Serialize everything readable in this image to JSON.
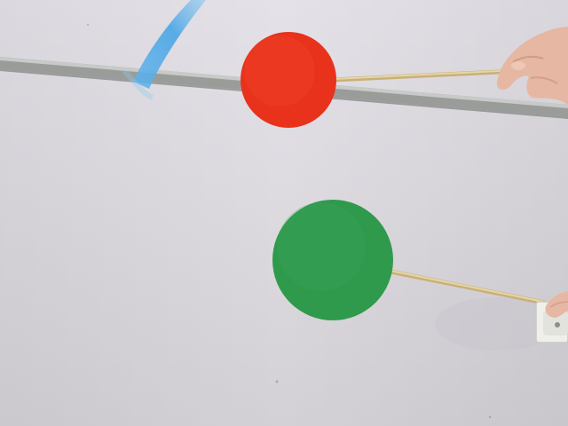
{
  "scene": {
    "subjects": [
      "red-disc",
      "green-disc"
    ],
    "colors": {
      "wall": "#dcdadf",
      "wall_shadow": "#c9c6cf",
      "rail": "#8f9290",
      "rail_highlight": "#c4c6c4",
      "red_disc": "#e8321c",
      "green_disc": "#2f9a4c",
      "stick": "#d8c48f",
      "skin": "#e8b9a5",
      "blue_streak": "#4aa6e6",
      "socket": "#eeeeea"
    }
  }
}
